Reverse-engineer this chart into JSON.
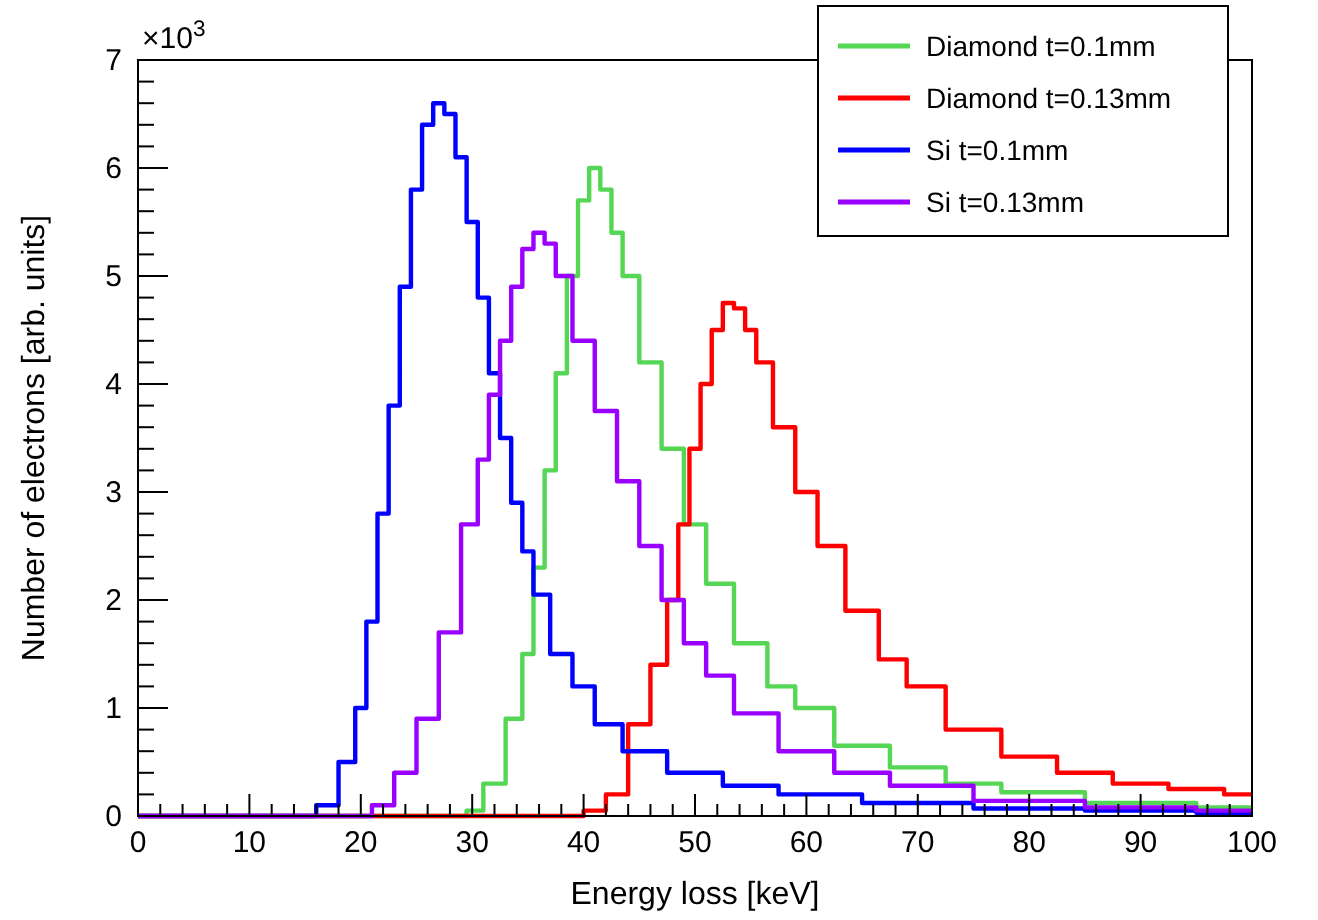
{
  "chart_data": {
    "type": "step",
    "xlabel": "Energy loss [keV]",
    "ylabel": "Number of electrons [arb. units]",
    "annotations": [
      "×10$^{3}$"
    ],
    "xlim": [
      0,
      100
    ],
    "ylim": [
      0,
      7
    ],
    "xticks": [
      0,
      {
        "value": 2,
        "label": null
      },
      {
        "value": 4,
        "label": null
      },
      {
        "value": 6,
        "label": null
      },
      {
        "value": 8,
        "label": null
      },
      10,
      {
        "value": 12,
        "label": null
      },
      {
        "value": 14,
        "label": null
      },
      {
        "value": 16,
        "label": null
      },
      {
        "value": 18,
        "label": null
      },
      20,
      {
        "value": 22,
        "label": null
      },
      {
        "value": 24,
        "label": null
      },
      {
        "value": 26,
        "label": null
      },
      {
        "value": 28,
        "label": null
      },
      30,
      {
        "value": 32,
        "label": null
      },
      {
        "value": 34,
        "label": null
      },
      {
        "value": 36,
        "label": null
      },
      {
        "value": 38,
        "label": null
      },
      40,
      {
        "value": 42,
        "label": null
      },
      {
        "value": 44,
        "label": null
      },
      {
        "value": 46,
        "label": null
      },
      {
        "value": 48,
        "label": null
      },
      50,
      {
        "value": 52,
        "label": null
      },
      {
        "value": 54,
        "label": null
      },
      {
        "value": 56,
        "label": null
      },
      {
        "value": 58,
        "label": null
      },
      60,
      {
        "value": 62,
        "label": null
      },
      {
        "value": 64,
        "label": null
      },
      {
        "value": 66,
        "label": null
      },
      {
        "value": 68,
        "label": null
      },
      70,
      {
        "value": 72,
        "label": null
      },
      {
        "value": 74,
        "label": null
      },
      {
        "value": 76,
        "label": null
      },
      {
        "value": 78,
        "label": null
      },
      80,
      {
        "value": 82,
        "label": null
      },
      {
        "value": 84,
        "label": null
      },
      {
        "value": 86,
        "label": null
      },
      {
        "value": 88,
        "label": null
      },
      90,
      {
        "value": 92,
        "label": null
      },
      {
        "value": 94,
        "label": null
      },
      {
        "value": 96,
        "label": null
      },
      {
        "value": 98,
        "label": null
      },
      100
    ],
    "yticks": [
      0,
      {
        "value": 0.2,
        "label": null
      },
      {
        "value": 0.4,
        "label": null
      },
      {
        "value": 0.6,
        "label": null
      },
      {
        "value": 0.8,
        "label": null
      },
      1,
      {
        "value": 1.2,
        "label": null
      },
      {
        "value": 1.4,
        "label": null
      },
      {
        "value": 1.6,
        "label": null
      },
      {
        "value": 1.8,
        "label": null
      },
      2,
      {
        "value": 2.2,
        "label": null
      },
      {
        "value": 2.4,
        "label": null
      },
      {
        "value": 2.6,
        "label": null
      },
      {
        "value": 2.8,
        "label": null
      },
      3,
      {
        "value": 3.2,
        "label": null
      },
      {
        "value": 3.4,
        "label": null
      },
      {
        "value": 3.6,
        "label": null
      },
      {
        "value": 3.8,
        "label": null
      },
      4,
      {
        "value": 4.2,
        "label": null
      },
      {
        "value": 4.4,
        "label": null
      },
      {
        "value": 4.6,
        "label": null
      },
      {
        "value": 4.8,
        "label": null
      },
      5,
      {
        "value": 5.2,
        "label": null
      },
      {
        "value": 5.4,
        "label": null
      },
      {
        "value": 5.6,
        "label": null
      },
      {
        "value": 5.8,
        "label": null
      },
      6,
      {
        "value": 6.2,
        "label": null
      },
      {
        "value": 6.4,
        "label": null
      },
      {
        "value": 6.6,
        "label": null
      },
      {
        "value": 6.8,
        "label": null
      },
      7
    ],
    "legend": "top right",
    "grid": false,
    "line_style": "solid",
    "marker": "none",
    "series": [
      {
        "name": "Diamond t=0.1mm",
        "color": "#55d655",
        "x": [
          0,
          29,
          30,
          32,
          34,
          35,
          36,
          37,
          38,
          39,
          40,
          41,
          42,
          43,
          44,
          46,
          48,
          50,
          52,
          55,
          58,
          60,
          65,
          70,
          75,
          80,
          90,
          100
        ],
        "values": [
          0,
          0,
          0.05,
          0.3,
          0.9,
          1.5,
          2.3,
          3.2,
          4.1,
          5.0,
          5.7,
          6.0,
          5.8,
          5.4,
          5.0,
          4.2,
          3.4,
          2.7,
          2.15,
          1.6,
          1.2,
          1.0,
          0.65,
          0.45,
          0.3,
          0.22,
          0.12,
          0.08
        ]
      },
      {
        "name": "Diamond t=0.13mm",
        "color": "#ff0000",
        "x": [
          0,
          39,
          41,
          43,
          45,
          47,
          48,
          49,
          50,
          51,
          52,
          53,
          54,
          55,
          56,
          58,
          60,
          62,
          65,
          68,
          70,
          75,
          80,
          85,
          90,
          95,
          100
        ],
        "values": [
          0,
          0,
          0.05,
          0.2,
          0.85,
          1.4,
          2.0,
          2.7,
          3.4,
          4.0,
          4.5,
          4.75,
          4.7,
          4.5,
          4.2,
          3.6,
          3.0,
          2.5,
          1.9,
          1.45,
          1.2,
          0.8,
          0.55,
          0.4,
          0.3,
          0.25,
          0.2
        ]
      },
      {
        "name": "Si t=0.1mm",
        "color": "#0000ff",
        "x": [
          0,
          15,
          17,
          19,
          20,
          21,
          22,
          23,
          24,
          25,
          26,
          27,
          28,
          29,
          30,
          31,
          32,
          33,
          34,
          35,
          36,
          38,
          40,
          42,
          45,
          50,
          55,
          60,
          70,
          80,
          90,
          100
        ],
        "values": [
          0,
          0,
          0.1,
          0.5,
          1.0,
          1.8,
          2.8,
          3.8,
          4.9,
          5.8,
          6.4,
          6.6,
          6.5,
          6.1,
          5.5,
          4.8,
          4.1,
          3.5,
          2.9,
          2.45,
          2.05,
          1.5,
          1.2,
          0.85,
          0.6,
          0.4,
          0.28,
          0.2,
          0.12,
          0.07,
          0.05,
          0.03
        ]
      },
      {
        "name": "Si t=0.13mm",
        "color": "#9900ff",
        "x": [
          0,
          20,
          22,
          24,
          26,
          28,
          30,
          31,
          32,
          33,
          34,
          35,
          36,
          37,
          38,
          40,
          42,
          44,
          46,
          48,
          50,
          52,
          55,
          60,
          65,
          70,
          80,
          90,
          100
        ],
        "values": [
          0,
          0,
          0.1,
          0.4,
          0.9,
          1.7,
          2.7,
          3.3,
          3.9,
          4.4,
          4.9,
          5.25,
          5.4,
          5.3,
          5.0,
          4.4,
          3.75,
          3.1,
          2.5,
          2.0,
          1.6,
          1.3,
          0.95,
          0.6,
          0.4,
          0.28,
          0.14,
          0.08,
          0.05
        ]
      }
    ]
  }
}
